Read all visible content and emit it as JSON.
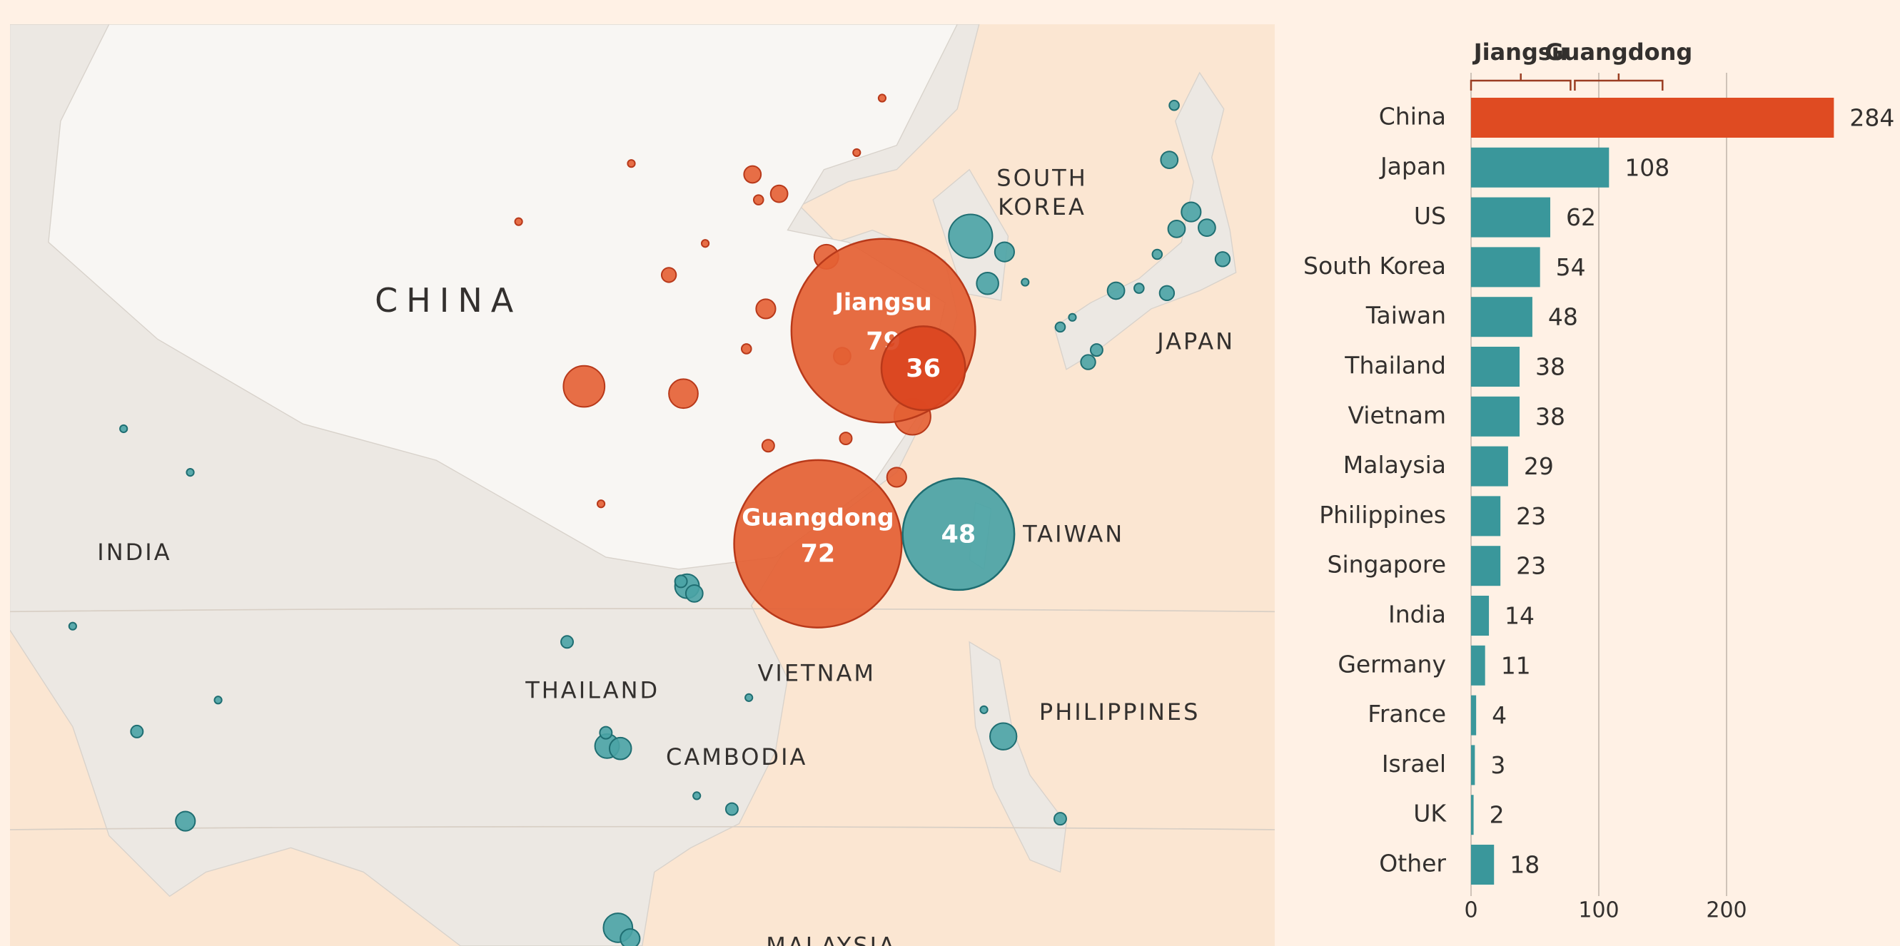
{
  "chart_data": [
    {
      "type": "bubble-map",
      "places": [
        {
          "lines": [
            "CHINA"
          ]
        },
        {
          "lines": [
            "SOUTH",
            "KOREA"
          ]
        },
        {
          "lines": [
            "JAPAN"
          ]
        },
        {
          "lines": [
            "INDIA"
          ]
        },
        {
          "lines": [
            "TAIWAN"
          ]
        },
        {
          "lines": [
            "THAILAND"
          ]
        },
        {
          "lines": [
            "VIETNAM"
          ]
        },
        {
          "lines": [
            "CAMBODIA"
          ]
        },
        {
          "lines": [
            "PHILIPPINES"
          ]
        },
        {
          "lines": [
            "MALAYSIA"
          ]
        }
      ],
      "bubbles": [
        {
          "name": "Jiangsu",
          "value": 79,
          "color": "#e45f33"
        },
        {
          "value": 36,
          "color": "#db4520"
        },
        {
          "name": "Guangdong",
          "value": 72,
          "color": "#e45f33"
        },
        {
          "value": 48,
          "color": "#4aa3a5"
        }
      ]
    },
    {
      "type": "bar",
      "categories": [
        "China",
        "Japan",
        "US",
        "South Korea",
        "Taiwan",
        "Thailand",
        "Vietnam",
        "Malaysia",
        "Philippines",
        "Singapore",
        "India",
        "Germany",
        "France",
        "Israel",
        "UK",
        "Other"
      ],
      "values": [
        284,
        108,
        62,
        54,
        48,
        38,
        38,
        29,
        23,
        23,
        14,
        11,
        4,
        3,
        2,
        18
      ],
      "colors": [
        "#df4b22",
        "#3a979b",
        "#3a979b",
        "#3a979b",
        "#3a979b",
        "#3a979b",
        "#3a979b",
        "#3a979b",
        "#3a979b",
        "#3a979b",
        "#3a979b",
        "#3a979b",
        "#3a979b",
        "#3a979b",
        "#3a979b",
        "#3a979b"
      ],
      "xlim": [
        0,
        300
      ],
      "xticks": [
        0,
        100,
        200
      ],
      "grid": true,
      "brackets": [
        {
          "label": "Jiangsu",
          "value": 79
        },
        {
          "label": "Guangdong",
          "value": 72
        }
      ]
    }
  ]
}
